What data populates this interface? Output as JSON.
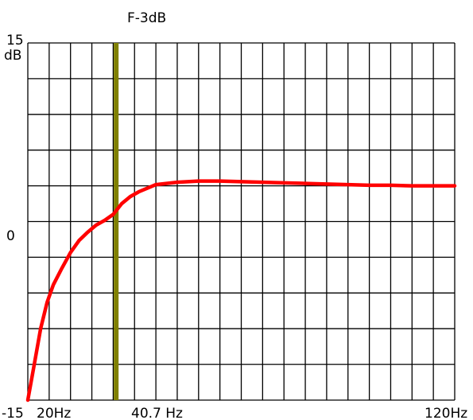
{
  "chart_data": {
    "type": "line",
    "annotation": {
      "label": "F-3dB",
      "x": 40.7,
      "x_label": "40.7 Hz",
      "color": "#808000"
    },
    "y_axis": {
      "top_label_value": "15",
      "top_label_unit": "dB",
      "zero_label": "0",
      "bottom_label": "-15",
      "ylim": [
        -15,
        15
      ],
      "grid_step": 3
    },
    "x_axis": {
      "start_label": "20Hz",
      "end_label": "120Hz",
      "xlim": [
        20,
        120
      ],
      "grid_step": 5
    },
    "grid": true,
    "series": [
      {
        "color": "#ff0000",
        "x": [
          20,
          21.5,
          23,
          24.5,
          26,
          28,
          30,
          32,
          34,
          36,
          38,
          40,
          42,
          44,
          46,
          48,
          50,
          55,
          60,
          65,
          70,
          75,
          80,
          85,
          90,
          95,
          100,
          105,
          110,
          115,
          120
        ],
        "y": [
          -15,
          -12,
          -9,
          -6.8,
          -5.3,
          -3.9,
          -2.6,
          -1.6,
          -0.9,
          -0.3,
          0.1,
          0.6,
          1.5,
          2.1,
          2.5,
          2.8,
          3.1,
          3.3,
          3.4,
          3.4,
          3.35,
          3.3,
          3.25,
          3.2,
          3.15,
          3.1,
          3.05,
          3.05,
          3.0,
          3.0,
          3.0
        ]
      }
    ]
  }
}
